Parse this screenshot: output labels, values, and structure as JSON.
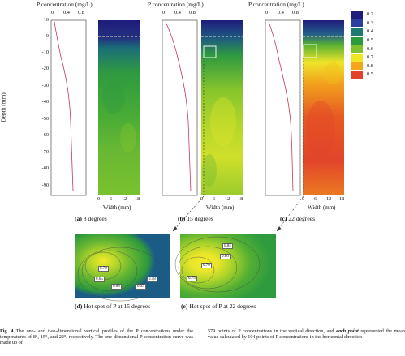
{
  "top_axis": {
    "title": "P concentration (mg/L)",
    "ticks": [
      "0",
      "0.4",
      "0.8"
    ]
  },
  "depth_axis": {
    "label": "Depth (mm)",
    "ticks": [
      "10",
      "0",
      "-10",
      "-20",
      "-30",
      "-40",
      "-50",
      "-60",
      "-70",
      "-80",
      "-90"
    ]
  },
  "width_axis": {
    "label": "Width (mm)",
    "ticks": [
      "0",
      "6",
      "12",
      "18"
    ]
  },
  "legend": {
    "items": [
      {
        "label": "0.2",
        "color": "#1f1c7c"
      },
      {
        "label": "0.3",
        "color": "#2a3fa0"
      },
      {
        "label": "0.4",
        "color": "#1e7a70"
      },
      {
        "label": "0.5",
        "color": "#2a9a3a"
      },
      {
        "label": "0.6",
        "color": "#7fc22c"
      },
      {
        "label": "0.7",
        "color": "#f1e625"
      },
      {
        "label": "0.8",
        "color": "#f3a51c"
      },
      {
        "label": "0.5b",
        "color": "#e1422a"
      }
    ],
    "labels_shown": [
      "0.2",
      "0.3",
      "0.4",
      "0.5",
      "0.6",
      "0.7",
      "0.8",
      "0.5"
    ]
  },
  "panels": [
    {
      "tag": "(a)",
      "label": "8 degrees"
    },
    {
      "tag": "(b)",
      "label": "15 degrees"
    },
    {
      "tag": "(c)",
      "label": "22 degrees"
    }
  ],
  "hotspots": [
    {
      "tag": "(d)",
      "label": "Hot spot of P at 15 degrees",
      "contours": [
        "0.70",
        "0.65",
        "0.68",
        "0.55",
        "0.58"
      ]
    },
    {
      "tag": "(e)",
      "label": "Hot spot of P at 22 degrees",
      "contours": [
        "0.75",
        "0.70",
        "0.80",
        "0.85"
      ]
    }
  ],
  "caption": {
    "bold": "Fig. 4",
    "left": "The one- and two-dimensional vertical profiles of the P concentrations under the temperatures of 8°, 15°, and 22°, respectively. The one-dimensional P concentration curve was made up of",
    "right_a": "579 points of P concentrations in the vertical direction, and",
    "right_em": "each point",
    "right_b": "represented the mean value calculated by 104 points of P concentrations in the horizontal direction"
  }
}
